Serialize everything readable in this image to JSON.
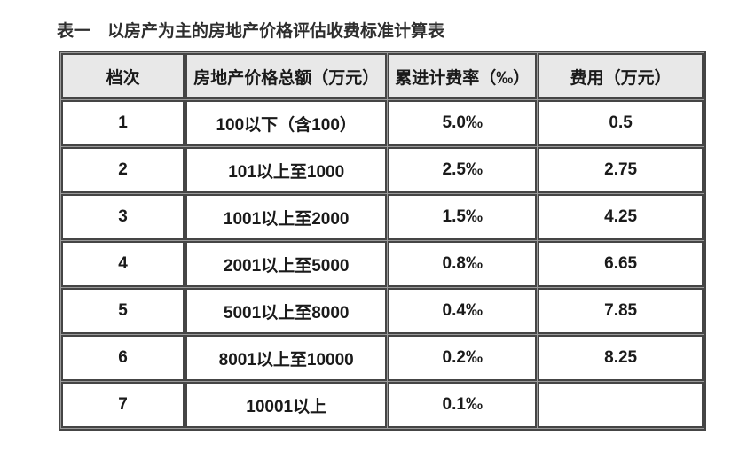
{
  "title": "表一　以房产为主的房地产价格评估收费标准计算表",
  "colors": {
    "page_bg": "#ffffff",
    "header_bg": "#e8e8e8",
    "border": "#454545",
    "gap": "#9a9a9a",
    "text": "#1a1a1a",
    "title_text": "#2e2e2e"
  },
  "table": {
    "headers": [
      "档次",
      "房地产价格总额（万元）",
      "累进计费率（‰）",
      "费用（万元）"
    ],
    "rows": [
      [
        "1",
        "100以下（含100）",
        "5.0‰",
        "0.5"
      ],
      [
        "2",
        "101以上至1000",
        "2.5‰",
        "2.75"
      ],
      [
        "3",
        "1001以上至2000",
        "1.5‰",
        "4.25"
      ],
      [
        "4",
        "2001以上至5000",
        "0.8‰",
        "6.65"
      ],
      [
        "5",
        "5001以上至8000",
        "0.4‰",
        "7.85"
      ],
      [
        "6",
        "8001以上至10000",
        "0.2‰",
        "8.25"
      ],
      [
        "7",
        "10001以上",
        "0.1‰",
        ""
      ]
    ]
  }
}
